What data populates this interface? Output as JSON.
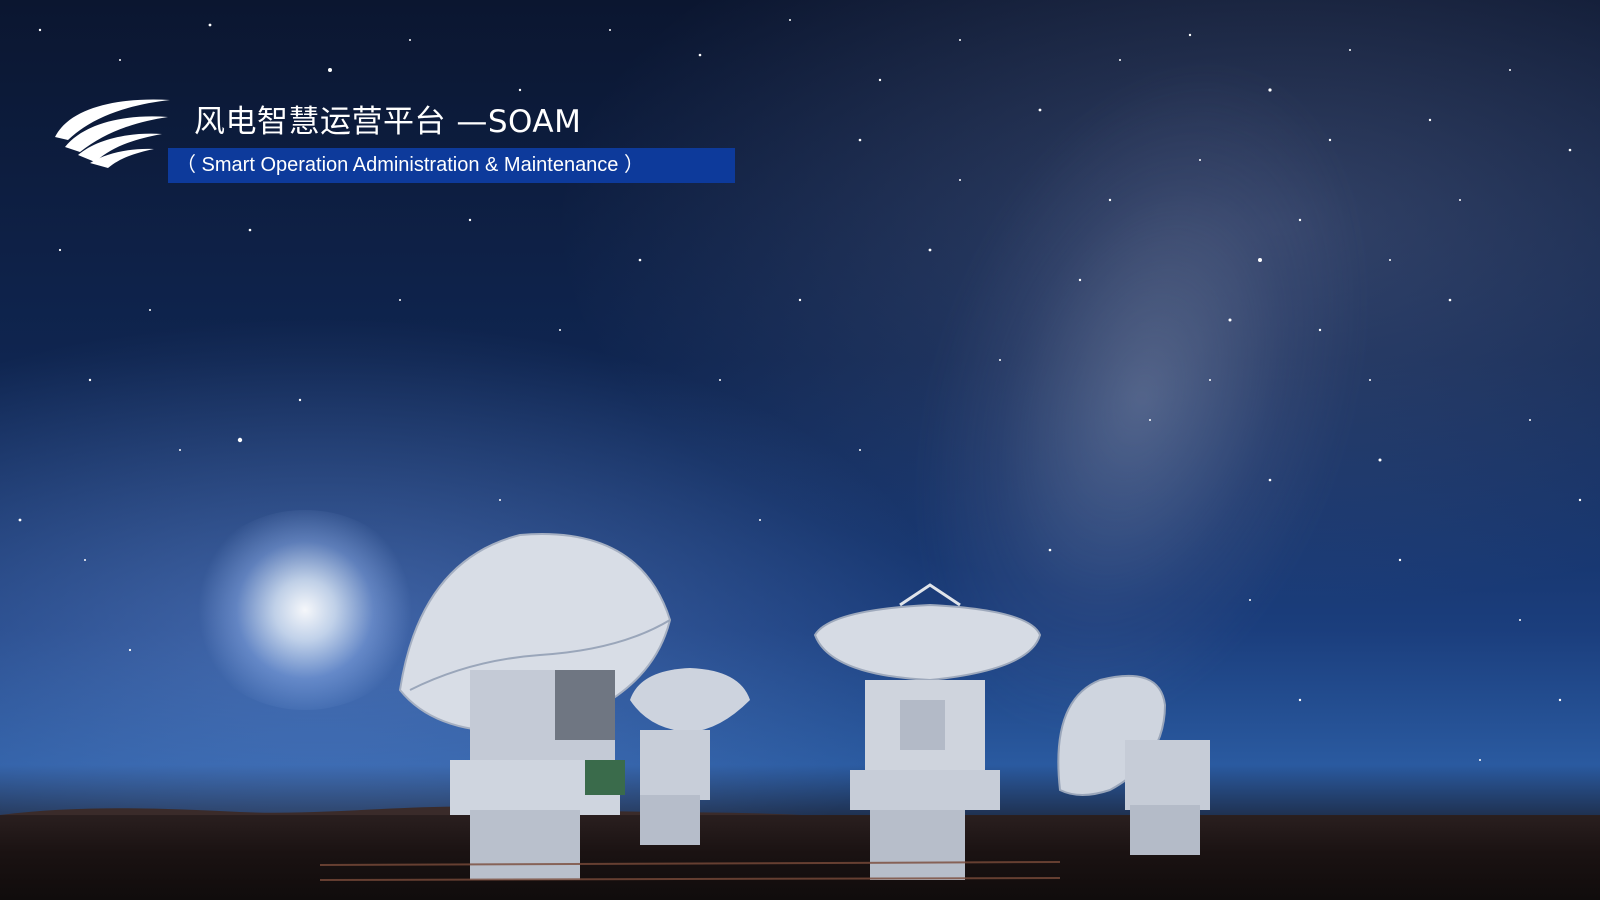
{
  "slide": {
    "title": "风电智慧运营平台 —SOAM",
    "subtitle": "（ Smart Operation Administration & Maintenance ）"
  },
  "icons": {
    "logo": "swoosh-logo-icon"
  },
  "colors": {
    "sky_top": "#0b1630",
    "sky_mid": "#1b3e7d",
    "subtitle_bar": "#0d3a9b",
    "text": "#ffffff"
  }
}
